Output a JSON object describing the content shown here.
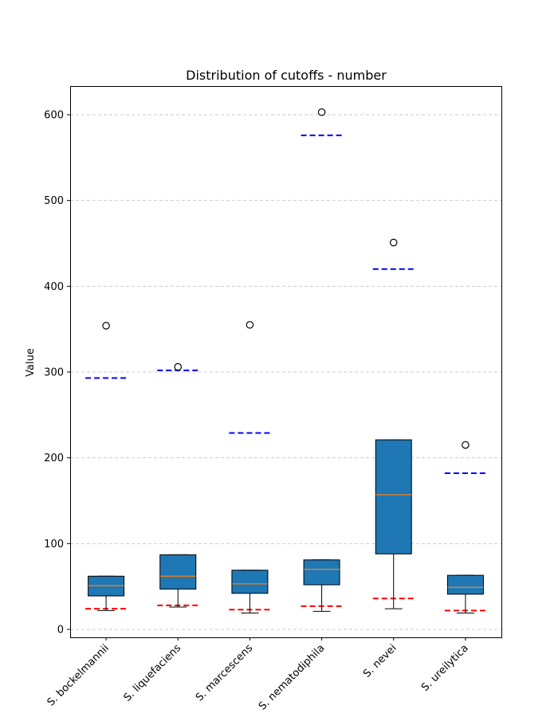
{
  "chart_data": {
    "type": "box",
    "title": "Distribution of cutoffs - number",
    "xlabel": "",
    "ylabel": "Value",
    "ylim": [
      -10,
      632
    ],
    "yticks": [
      0,
      100,
      200,
      300,
      400,
      500,
      600
    ],
    "grid": "y-dashed",
    "box_color": "#1f77b4",
    "median_color": "#ff7f0e",
    "upper_line_color": "#0000ff",
    "lower_line_color": "#ff0000",
    "categories": [
      "S. bockelmannii",
      "S. liquefaciens",
      "S. marcescens",
      "S. nematodiphila",
      "S. nevei",
      "S. ureilytica"
    ],
    "boxes": [
      {
        "category": "S. bockelmannii",
        "whislo": 22,
        "q1": 39,
        "med": 51,
        "q3": 62,
        "whishi": 62,
        "fliers": [
          354
        ],
        "upper_line": 293,
        "lower_line": 24
      },
      {
        "category": "S. liquefaciens",
        "whislo": 26,
        "q1": 47,
        "med": 62,
        "q3": 87,
        "whishi": 87,
        "fliers": [
          306
        ],
        "upper_line": 302,
        "lower_line": 28
      },
      {
        "category": "S. marcescens",
        "whislo": 19,
        "q1": 42,
        "med": 53,
        "q3": 69,
        "whishi": 69,
        "fliers": [
          355
        ],
        "upper_line": 229,
        "lower_line": 23
      },
      {
        "category": "S. nematodiphila",
        "whislo": 21,
        "q1": 52,
        "med": 70,
        "q3": 81,
        "whishi": 81,
        "fliers": [
          603
        ],
        "upper_line": 576,
        "lower_line": 27
      },
      {
        "category": "S. nevei",
        "whislo": 24,
        "q1": 88,
        "med": 157,
        "q3": 221,
        "whishi": 221,
        "fliers": [
          451
        ],
        "upper_line": 420,
        "lower_line": 36
      },
      {
        "category": "S. ureilytica",
        "whislo": 19,
        "q1": 41,
        "med": 49,
        "q3": 63,
        "whishi": 63,
        "fliers": [
          215
        ],
        "upper_line": 182,
        "lower_line": 22
      }
    ]
  }
}
